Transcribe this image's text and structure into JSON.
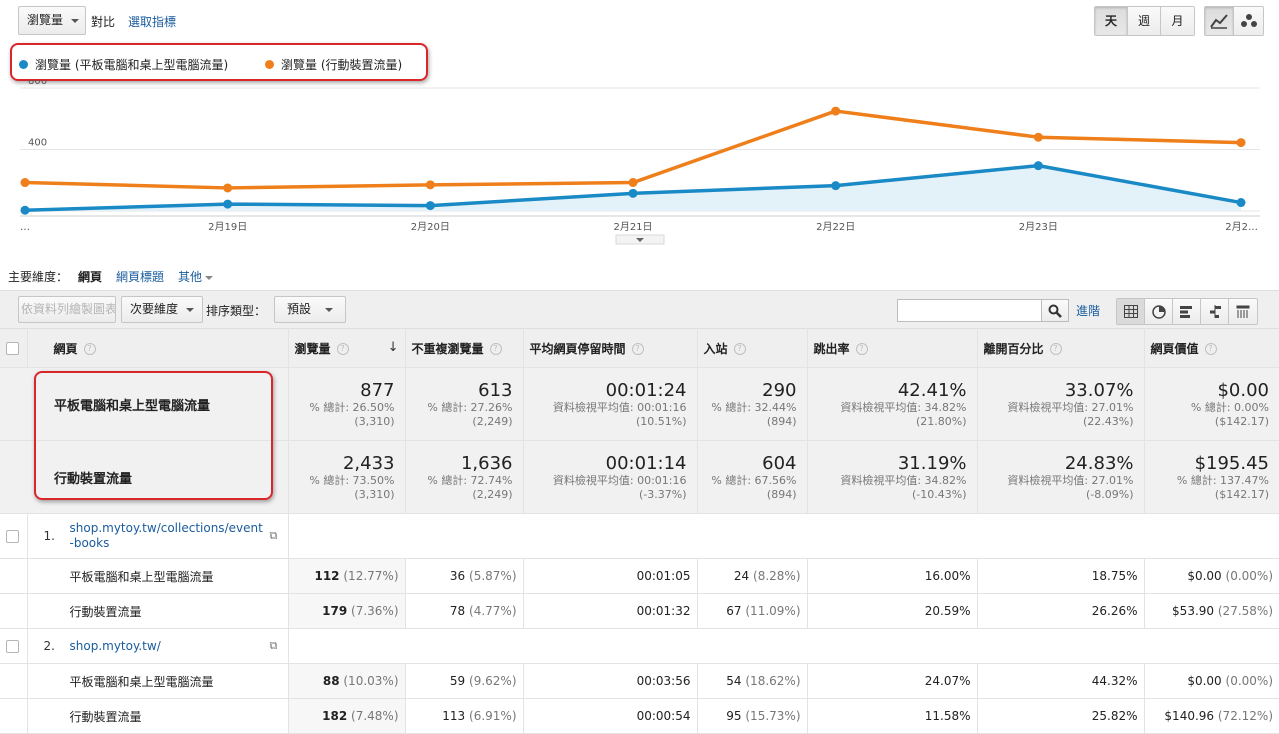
{
  "toolbar": {
    "metric_select": "瀏覽量",
    "compare_label": "對比",
    "select_metric_link": "選取指標",
    "periods": [
      "天",
      "週",
      "月"
    ]
  },
  "legend": [
    {
      "label": "瀏覽量 (平板電腦和桌上型電腦流量)",
      "color": "#1a8ac6"
    },
    {
      "label": "瀏覽量 (行動裝置流量)",
      "color": "#ef7f1a"
    }
  ],
  "chart_data": {
    "type": "line",
    "x": [
      "…",
      "2月19日",
      "2月20日",
      "2月21日",
      "2月22日",
      "2月23日",
      "2月2…"
    ],
    "series": [
      {
        "name": "瀏覽量 (平板電腦和桌上型電腦流量)",
        "color": "#1a8ac6",
        "values": [
          5,
          45,
          35,
          115,
          165,
          295,
          55
        ]
      },
      {
        "name": "瀏覽量 (行動裝置流量)",
        "color": "#ef7f1a",
        "values": [
          185,
          150,
          170,
          185,
          650,
          480,
          445
        ]
      }
    ],
    "ylim": [
      0,
      800
    ],
    "yticks": [
      "800",
      "400"
    ],
    "grid": true
  },
  "dimension": {
    "label": "主要維度：",
    "active": "網頁",
    "links": [
      "網頁標題",
      "其他"
    ]
  },
  "table_tools": {
    "plot_rows": "依資料列繪製圖表",
    "secondary_dim": "次要維度",
    "sort_label": "排序類型：",
    "sort_value": "預設",
    "advanced": "進階"
  },
  "columns": [
    "網頁",
    "瀏覽量",
    "不重複瀏覽量",
    "平均網頁停留時間",
    "入站",
    "跳出率",
    "離開百分比",
    "網頁價值"
  ],
  "summary": [
    {
      "name": "平板電腦和桌上型電腦流量",
      "cells": [
        {
          "value": "877",
          "sub1": "% 總計: 26.50%",
          "sub2": "(3,310)"
        },
        {
          "value": "613",
          "sub1": "% 總計: 27.26%",
          "sub2": "(2,249)"
        },
        {
          "value": "00:01:24",
          "sub1": "資料檢視平均值: 00:01:16",
          "sub2": "(10.51%)"
        },
        {
          "value": "290",
          "sub1": "% 總計: 32.44%",
          "sub2": "(894)"
        },
        {
          "value": "42.41%",
          "sub1": "資料檢視平均值: 34.82%",
          "sub2": "(21.80%)"
        },
        {
          "value": "33.07%",
          "sub1": "資料檢視平均值: 27.01%",
          "sub2": "(22.43%)"
        },
        {
          "value": "$0.00",
          "sub1": "% 總計: 0.00%",
          "sub2": "($142.17)"
        }
      ]
    },
    {
      "name": "行動裝置流量",
      "cells": [
        {
          "value": "2,433",
          "sub1": "% 總計: 73.50%",
          "sub2": "(3,310)"
        },
        {
          "value": "1,636",
          "sub1": "% 總計: 72.74%",
          "sub2": "(2,249)"
        },
        {
          "value": "00:01:14",
          "sub1": "資料檢視平均值: 00:01:16",
          "sub2": "(-3.37%)"
        },
        {
          "value": "604",
          "sub1": "% 總計: 67.56%",
          "sub2": "(894)"
        },
        {
          "value": "31.19%",
          "sub1": "資料檢視平均值: 34.82%",
          "sub2": "(-10.43%)"
        },
        {
          "value": "24.83%",
          "sub1": "資料檢視平均值: 27.01%",
          "sub2": "(-8.09%)"
        },
        {
          "value": "$195.45",
          "sub1": "% 總計: 137.47%",
          "sub2": "($142.17)"
        }
      ]
    }
  ],
  "rows": [
    {
      "index": "1.",
      "page": "shop.mytoy.tw/collections/event-books",
      "segments": [
        {
          "name": "平板電腦和桌上型電腦流量",
          "views": "112",
          "views_pct": "(12.77%)",
          "unique": "36",
          "unique_pct": "(5.87%)",
          "time": "00:01:05",
          "entr": "24",
          "entr_pct": "(8.28%)",
          "bounce": "16.00%",
          "exit": "18.75%",
          "value": "$0.00",
          "value_pct": "(0.00%)"
        },
        {
          "name": "行動裝置流量",
          "views": "179",
          "views_pct": "(7.36%)",
          "unique": "78",
          "unique_pct": "(4.77%)",
          "time": "00:01:32",
          "entr": "67",
          "entr_pct": "(11.09%)",
          "bounce": "20.59%",
          "exit": "26.26%",
          "value": "$53.90",
          "value_pct": "(27.58%)"
        }
      ]
    },
    {
      "index": "2.",
      "page": "shop.mytoy.tw/",
      "segments": [
        {
          "name": "平板電腦和桌上型電腦流量",
          "views": "88",
          "views_pct": "(10.03%)",
          "unique": "59",
          "unique_pct": "(9.62%)",
          "time": "00:03:56",
          "entr": "54",
          "entr_pct": "(18.62%)",
          "bounce": "24.07%",
          "exit": "44.32%",
          "value": "$0.00",
          "value_pct": "(0.00%)"
        },
        {
          "name": "行動裝置流量",
          "views": "182",
          "views_pct": "(7.48%)",
          "unique": "113",
          "unique_pct": "(6.91%)",
          "time": "00:00:54",
          "entr": "95",
          "entr_pct": "(15.73%)",
          "bounce": "11.58%",
          "exit": "25.82%",
          "value": "$140.96",
          "value_pct": "(72.12%)"
        }
      ]
    }
  ]
}
